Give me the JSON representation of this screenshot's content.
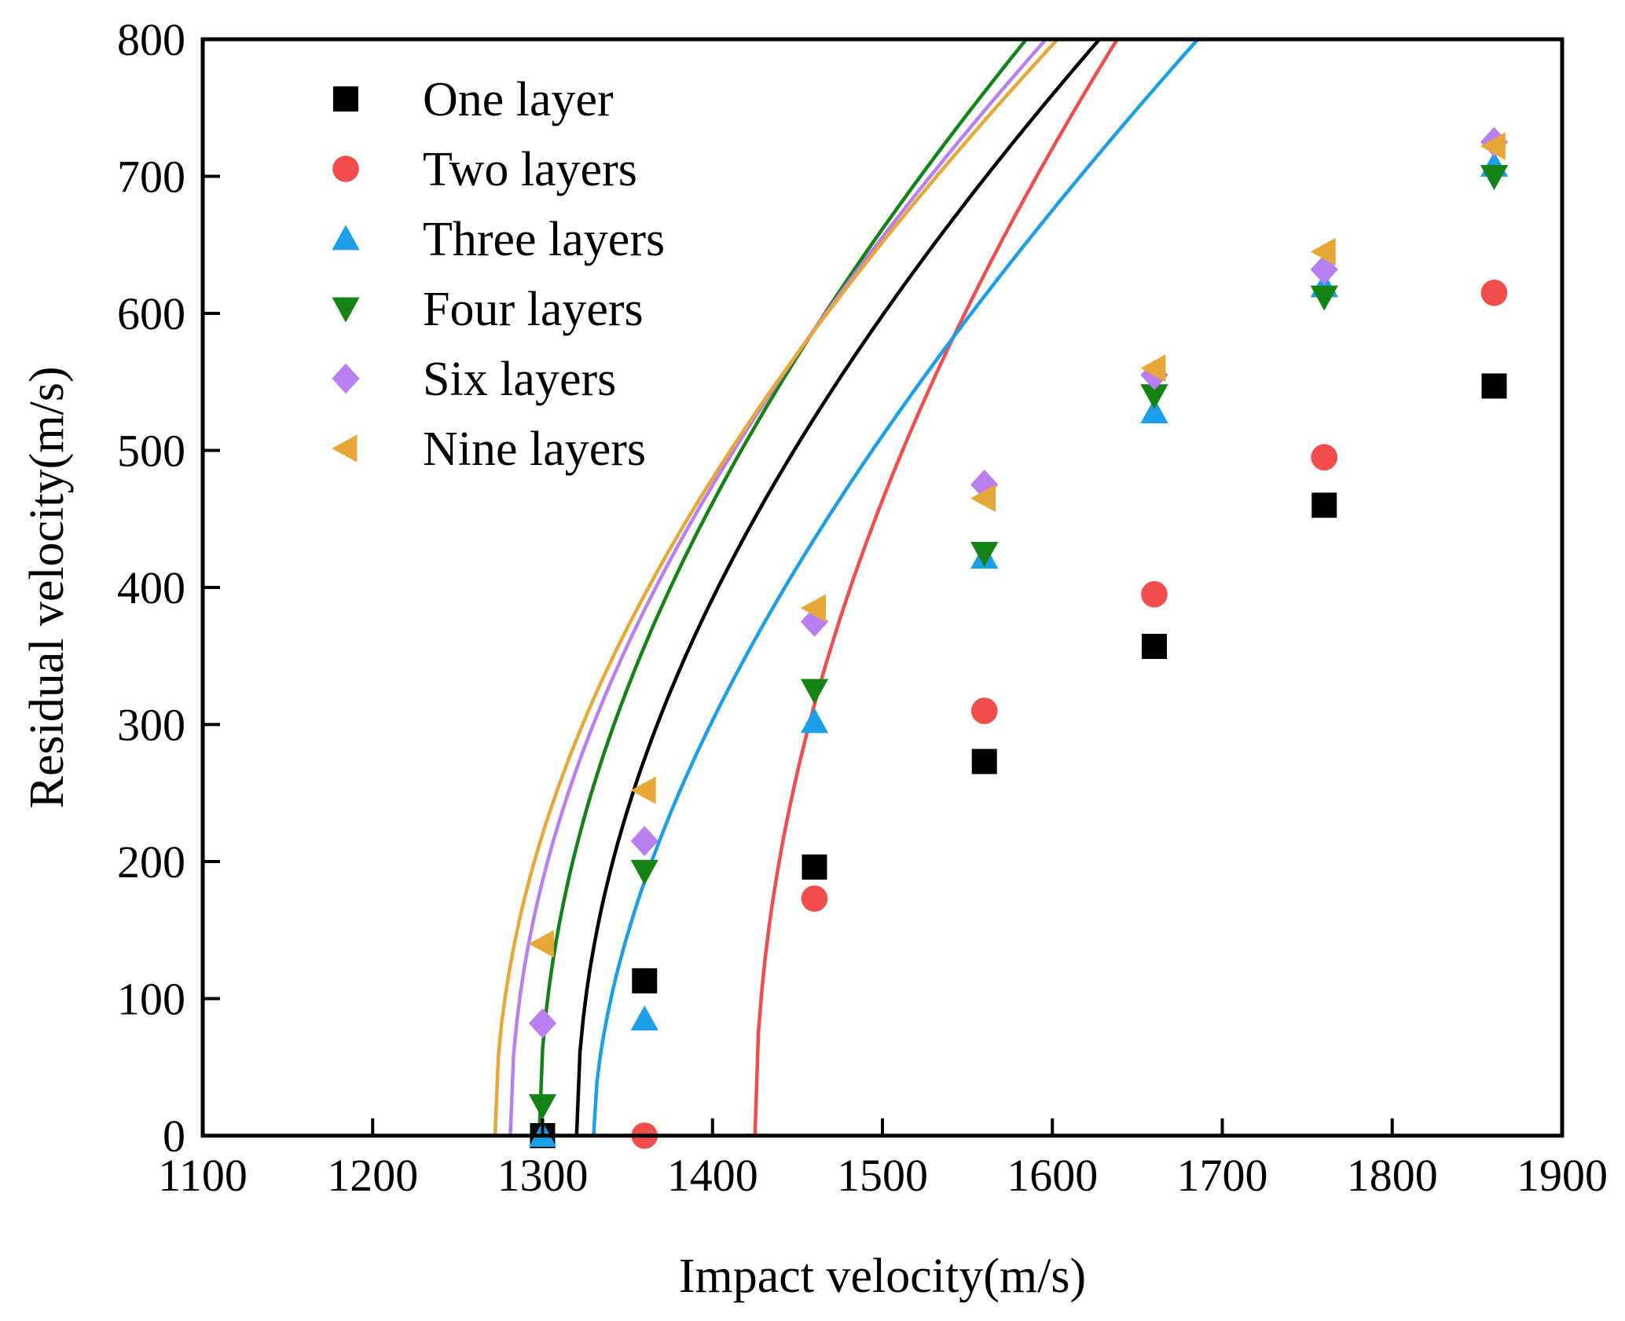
{
  "chart_data": {
    "type": "scatter",
    "title": "",
    "xlabel": "Impact velocity(m/s)",
    "ylabel": "Residual velocity(m/s)",
    "xlim": [
      1100,
      1900
    ],
    "ylim": [
      0,
      800
    ],
    "xticks": [
      1100,
      1200,
      1300,
      1400,
      1500,
      1600,
      1700,
      1800,
      1900
    ],
    "yticks": [
      0,
      100,
      200,
      300,
      400,
      500,
      600,
      700,
      800
    ],
    "xtick_labels": [
      "1100",
      "1200",
      "1300",
      "1400",
      "1500",
      "1600",
      "1700",
      "1800",
      "1900"
    ],
    "ytick_labels": [
      "0",
      "100",
      "200",
      "300",
      "400",
      "500",
      "600",
      "700",
      "800"
    ],
    "grid": false,
    "legend_position": "top-left",
    "series": [
      {
        "name": "One layer",
        "marker": "square",
        "color": "#000000",
        "x": [
          1300,
          1360,
          1460,
          1560,
          1660,
          1760,
          1860
        ],
        "y": [
          0,
          113,
          196,
          273,
          357,
          460,
          547
        ],
        "fit": {
          "v_limit": 1320,
          "a": 0.84,
          "p": 2.0
        }
      },
      {
        "name": "Two layers",
        "marker": "circle",
        "color": "#f24d4d",
        "x": [
          1360,
          1460,
          1560,
          1660,
          1760,
          1860
        ],
        "y": [
          0,
          173,
          310,
          395,
          495,
          615
        ],
        "fit": {
          "v_limit": 1425,
          "a": 0.99,
          "p": 2.0
        }
      },
      {
        "name": "Three layers",
        "marker": "triangle-up",
        "color": "#1a9fe8",
        "x": [
          1300,
          1360,
          1460,
          1560,
          1660,
          1760,
          1860
        ],
        "y": [
          0,
          85,
          302,
          422,
          528,
          620,
          708
        ],
        "fit": {
          "v_limit": 1330,
          "a": 0.88,
          "p": 1.75
        }
      },
      {
        "name": "Four layers",
        "marker": "triangle-down",
        "color": "#148214",
        "x": [
          1300,
          1360,
          1460,
          1560,
          1660,
          1760,
          1860
        ],
        "y": [
          22,
          193,
          325,
          425,
          540,
          612,
          700
        ],
        "fit": {
          "v_limit": 1298,
          "a": 0.88,
          "p": 2.0
        }
      },
      {
        "name": "Six layers",
        "marker": "diamond",
        "color": "#b97ff0",
        "x": [
          1300,
          1360,
          1460,
          1560,
          1660,
          1760,
          1860
        ],
        "y": [
          82,
          215,
          375,
          475,
          555,
          632,
          725
        ],
        "fit": {
          "v_limit": 1281,
          "a": 0.84,
          "p": 2.0
        }
      },
      {
        "name": "Nine layers",
        "marker": "triangle-left",
        "color": "#e8a838",
        "x": [
          1300,
          1360,
          1460,
          1560,
          1660,
          1760,
          1860
        ],
        "y": [
          140,
          252,
          385,
          465,
          560,
          645,
          722
        ],
        "fit": {
          "v_limit": 1272,
          "a": 0.82,
          "p": 2.0
        }
      }
    ]
  }
}
